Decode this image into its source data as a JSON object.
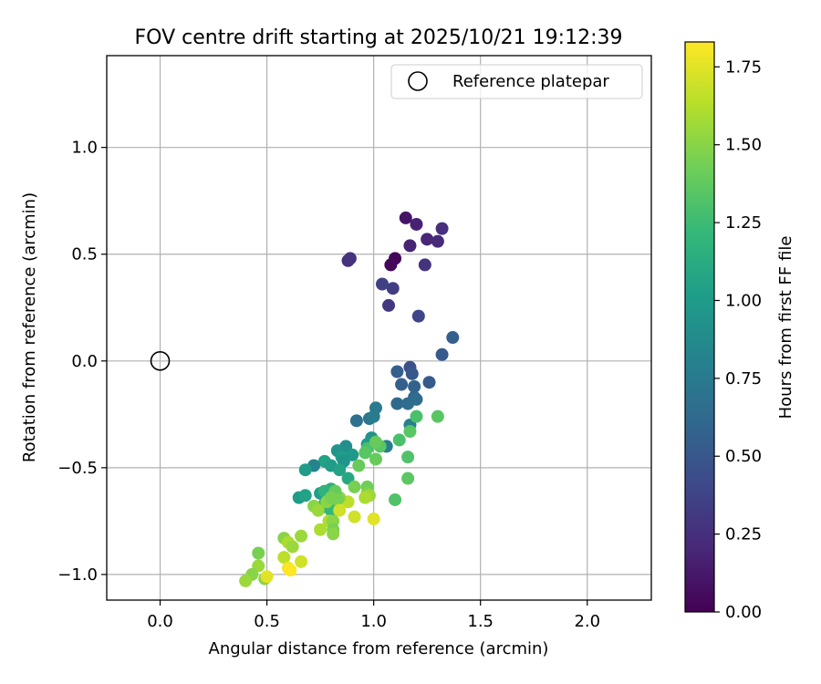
{
  "chart_data": {
    "type": "scatter",
    "title": "FOV centre drift starting at 2025/10/21 19:12:39",
    "xlabel": "Angular distance from reference (arcmin)",
    "ylabel": "Rotation from reference (arcmin)",
    "xlim": [
      -0.25,
      2.3
    ],
    "ylim": [
      -1.12,
      1.43
    ],
    "xticks": [
      0.0,
      0.5,
      1.0,
      1.5,
      2.0
    ],
    "xtick_labels": [
      "0.0",
      "0.5",
      "1.0",
      "1.5",
      "2.0"
    ],
    "yticks": [
      -1.0,
      -0.5,
      0.0,
      0.5,
      1.0
    ],
    "ytick_labels": [
      "−1.0",
      "−0.5",
      "0.0",
      "0.5",
      "1.0"
    ],
    "grid": true,
    "legend": {
      "location": "upper-right",
      "entries": [
        "Reference platepar"
      ]
    },
    "reference_point": {
      "x": 0.0,
      "y": 0.0,
      "label": "Reference platepar"
    },
    "colorbar": {
      "label": "Hours from first FF file",
      "range": [
        0.0,
        1.83
      ],
      "ticks": [
        0.0,
        0.25,
        0.5,
        0.75,
        1.0,
        1.25,
        1.5,
        1.75
      ],
      "tick_labels": [
        "0.00",
        "0.25",
        "0.50",
        "0.75",
        "1.00",
        "1.25",
        "1.50",
        "1.75"
      ],
      "colormap": [
        "#440154",
        "#482878",
        "#3e4989",
        "#31688e",
        "#26828e",
        "#1f9e89",
        "#35b779",
        "#6ece58",
        "#b5de2b",
        "#fde725"
      ]
    },
    "series": [
      {
        "name": "FOV centre drift",
        "points": [
          [
            1.1,
            0.48,
            0.02
          ],
          [
            1.08,
            0.45,
            0.03
          ],
          [
            1.15,
            0.67,
            0.1
          ],
          [
            1.2,
            0.64,
            0.17
          ],
          [
            1.17,
            0.54,
            0.18
          ],
          [
            1.25,
            0.57,
            0.2
          ],
          [
            1.3,
            0.56,
            0.22
          ],
          [
            1.32,
            0.62,
            0.25
          ],
          [
            0.88,
            0.47,
            0.25
          ],
          [
            0.89,
            0.48,
            0.27
          ],
          [
            1.24,
            0.45,
            0.27
          ],
          [
            1.09,
            0.34,
            0.33
          ],
          [
            1.04,
            0.36,
            0.36
          ],
          [
            1.07,
            0.26,
            0.3
          ],
          [
            1.21,
            0.21,
            0.38
          ],
          [
            1.32,
            0.03,
            0.52
          ],
          [
            1.37,
            0.11,
            0.55
          ],
          [
            1.17,
            -0.03,
            0.46
          ],
          [
            1.18,
            -0.06,
            0.5
          ],
          [
            1.13,
            -0.11,
            0.55
          ],
          [
            1.19,
            -0.12,
            0.58
          ],
          [
            1.26,
            -0.1,
            0.52
          ],
          [
            1.11,
            -0.05,
            0.55
          ],
          [
            1.19,
            -0.17,
            0.62
          ],
          [
            1.2,
            -0.18,
            0.64
          ],
          [
            1.11,
            -0.2,
            0.62
          ],
          [
            1.16,
            -0.2,
            0.65
          ],
          [
            1.01,
            -0.22,
            0.75
          ],
          [
            0.98,
            -0.27,
            0.72
          ],
          [
            1.0,
            -0.26,
            0.77
          ],
          [
            0.92,
            -0.28,
            0.68
          ],
          [
            1.17,
            -0.3,
            0.8
          ],
          [
            0.99,
            -0.36,
            0.92
          ],
          [
            0.97,
            -0.39,
            0.98
          ],
          [
            1.06,
            -0.4,
            0.78
          ],
          [
            0.87,
            -0.4,
            0.9
          ],
          [
            0.83,
            -0.42,
            0.95
          ],
          [
            0.9,
            -0.44,
            0.98
          ],
          [
            0.85,
            -0.45,
            1.02
          ],
          [
            0.86,
            -0.47,
            0.95
          ],
          [
            0.77,
            -0.47,
            1.05
          ],
          [
            0.8,
            -0.49,
            1.0
          ],
          [
            0.72,
            -0.49,
            0.82
          ],
          [
            0.68,
            -0.51,
            1.0
          ],
          [
            0.84,
            -0.51,
            1.05
          ],
          [
            0.88,
            -0.55,
            1.1
          ],
          [
            0.65,
            -0.64,
            1.0
          ],
          [
            0.68,
            -0.63,
            1.05
          ],
          [
            0.75,
            -0.62,
            1.02
          ],
          [
            0.77,
            -0.67,
            1.1
          ],
          [
            0.79,
            -0.65,
            1.15
          ],
          [
            0.75,
            -0.69,
            1.12
          ],
          [
            0.8,
            -0.7,
            1.2
          ],
          [
            0.82,
            -0.68,
            1.22
          ],
          [
            0.8,
            -0.6,
            1.15
          ],
          [
            0.77,
            -0.61,
            1.18
          ],
          [
            0.97,
            -0.41,
            1.3
          ],
          [
            0.96,
            -0.43,
            1.35
          ],
          [
            1.01,
            -0.46,
            1.4
          ],
          [
            1.03,
            -0.4,
            1.35
          ],
          [
            1.01,
            -0.38,
            1.4
          ],
          [
            1.12,
            -0.37,
            1.3
          ],
          [
            1.17,
            -0.33,
            1.35
          ],
          [
            1.2,
            -0.26,
            1.3
          ],
          [
            1.3,
            -0.26,
            1.35
          ],
          [
            1.16,
            -0.45,
            1.32
          ],
          [
            1.16,
            -0.55,
            1.36
          ],
          [
            1.1,
            -0.65,
            1.32
          ],
          [
            0.93,
            -0.49,
            1.4
          ],
          [
            0.91,
            -0.59,
            1.45
          ],
          [
            0.97,
            -0.59,
            1.42
          ],
          [
            0.97,
            -0.62,
            1.48
          ],
          [
            0.98,
            -0.63,
            1.55
          ],
          [
            0.96,
            -0.64,
            1.6
          ],
          [
            0.88,
            -0.66,
            1.65
          ],
          [
            0.84,
            -0.64,
            1.5
          ],
          [
            0.82,
            -0.61,
            1.4
          ],
          [
            0.83,
            -0.65,
            1.45
          ],
          [
            0.78,
            -0.66,
            1.5
          ],
          [
            0.8,
            -0.64,
            1.45
          ],
          [
            0.72,
            -0.68,
            1.5
          ],
          [
            0.74,
            -0.7,
            1.55
          ],
          [
            0.84,
            -0.7,
            1.7
          ],
          [
            0.79,
            -0.75,
            1.6
          ],
          [
            0.81,
            -0.75,
            1.5
          ],
          [
            0.91,
            -0.73,
            1.7
          ],
          [
            1.0,
            -0.74,
            1.75
          ],
          [
            0.81,
            -0.79,
            1.45
          ],
          [
            0.81,
            -0.81,
            1.5
          ],
          [
            0.75,
            -0.79,
            1.6
          ],
          [
            0.66,
            -0.82,
            1.55
          ],
          [
            0.58,
            -0.83,
            1.5
          ],
          [
            0.6,
            -0.85,
            1.6
          ],
          [
            0.62,
            -0.87,
            1.55
          ],
          [
            0.46,
            -0.9,
            1.45
          ],
          [
            0.58,
            -0.92,
            1.65
          ],
          [
            0.66,
            -0.94,
            1.7
          ],
          [
            0.46,
            -0.96,
            1.55
          ],
          [
            0.43,
            -1.0,
            1.5
          ],
          [
            0.4,
            -1.03,
            1.55
          ],
          [
            0.49,
            -1.02,
            1.5
          ],
          [
            0.5,
            -1.01,
            1.75
          ],
          [
            0.6,
            -0.97,
            1.8
          ],
          [
            0.61,
            -0.98,
            1.83
          ]
        ]
      }
    ]
  }
}
